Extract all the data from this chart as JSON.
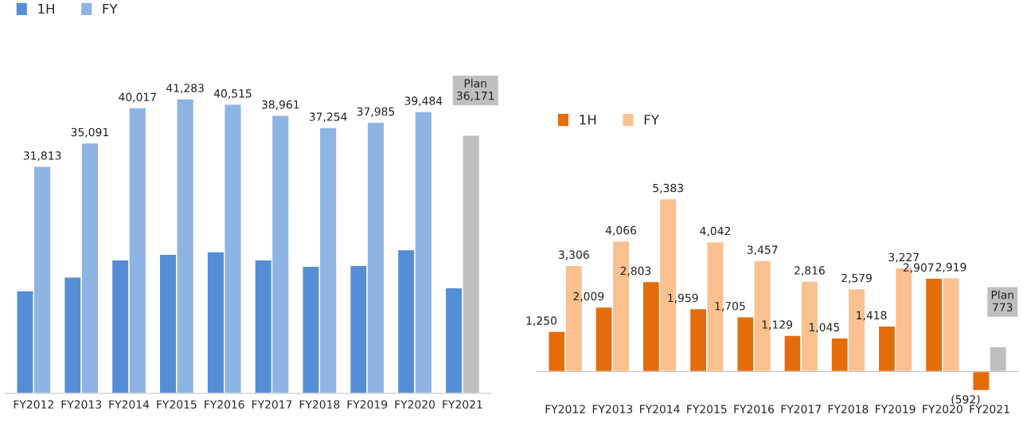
{
  "chart_data": [
    {
      "type": "bar",
      "categories": [
        "FY2012",
        "FY2013",
        "FY2014",
        "FY2015",
        "FY2016",
        "FY2017",
        "FY2018",
        "FY2019",
        "FY2020",
        "FY2021"
      ],
      "series": [
        {
          "name": "1H",
          "color": "#558ed5",
          "values": [
            14386,
            16308,
            18703,
            19477,
            19842,
            18711,
            17822,
            17927,
            20126,
            14793
          ]
        },
        {
          "name": "FY",
          "color": "#8eb4e3",
          "colors": [
            "#8eb4e3",
            "#8eb4e3",
            "#8eb4e3",
            "#8eb4e3",
            "#8eb4e3",
            "#8eb4e3",
            "#8eb4e3",
            "#8eb4e3",
            "#8eb4e3",
            "#bfbfbf"
          ],
          "values": [
            31813,
            35091,
            40017,
            41283,
            40515,
            38961,
            37254,
            37985,
            39484,
            36171
          ],
          "value_labels": [
            "31,813",
            "35,091",
            "40,017",
            "41,283",
            "40,515",
            "38,961",
            "37,254",
            "37,985",
            "39,484",
            "Plan\n36,171"
          ]
        }
      ],
      "legend": "top left",
      "grid": false
    },
    {
      "type": "bar",
      "categories": [
        "FY2012",
        "FY2013",
        "FY2014",
        "FY2015",
        "FY2016",
        "FY2017",
        "FY2018",
        "FY2019",
        "FY2020",
        "FY2021"
      ],
      "series": [
        {
          "name": "1H",
          "color": "#e46c0a",
          "values": [
            1250,
            2009,
            2803,
            1959,
            1705,
            1129,
            1045,
            1418,
            2907,
            -592
          ],
          "value_labels": [
            "1,250",
            "2,009",
            "2,803",
            "1,959",
            "1,705",
            "1,129",
            "1,045",
            "1,418",
            "2,907",
            "(592)"
          ]
        },
        {
          "name": "FY",
          "color": "#fac090",
          "colors": [
            "#fac090",
            "#fac090",
            "#fac090",
            "#fac090",
            "#fac090",
            "#fac090",
            "#fac090",
            "#fac090",
            "#fac090",
            "#bfbfbf"
          ],
          "values": [
            3306,
            4066,
            5383,
            4042,
            3457,
            2816,
            2579,
            3227,
            2919,
            773
          ],
          "value_labels": [
            "3,306",
            "4,066",
            "5,383",
            "4,042",
            "3,457",
            "2,816",
            "2,579",
            "3,227",
            "2,919",
            "Plan\n773"
          ]
        }
      ],
      "legend": "top left",
      "grid": false
    }
  ]
}
